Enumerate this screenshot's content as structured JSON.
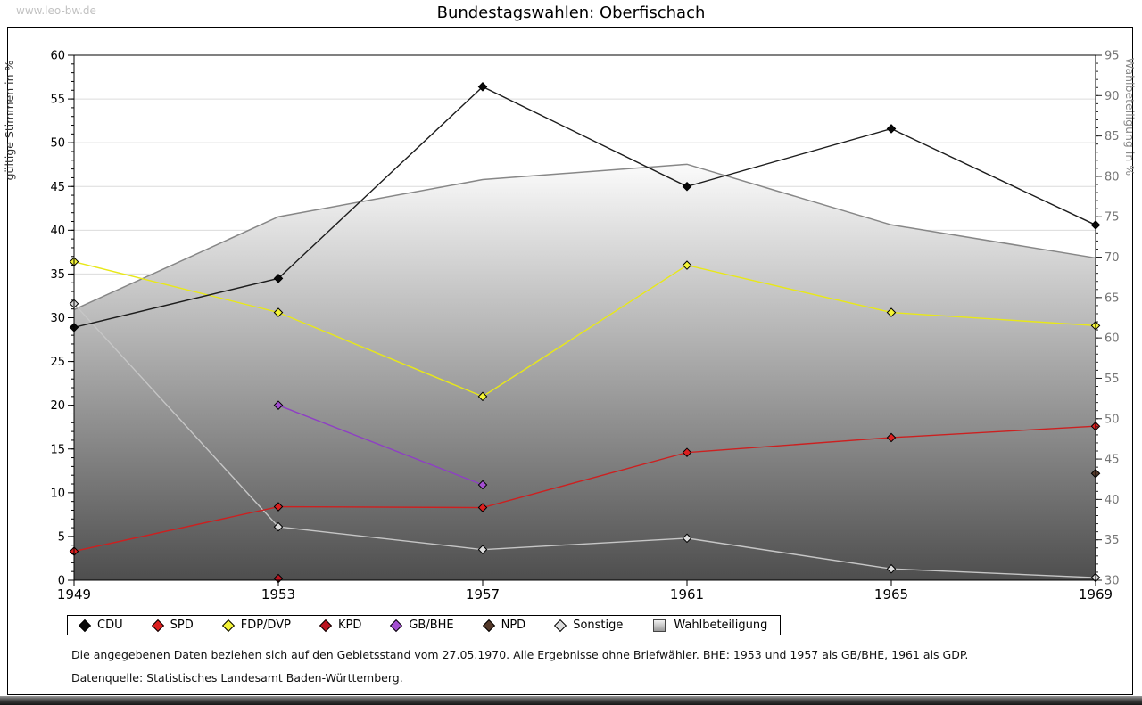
{
  "watermark": "www.leo-bw.de",
  "title": "Bundestagswahlen: Oberfischach",
  "footnotes": {
    "line1": "Die angegebenen Daten beziehen sich auf den Gebietsstand vom 27.05.1970. Alle Ergebnisse ohne Briefwähler. BHE: 1953 und 1957 als GB/BHE, 1961 als GDP.",
    "line2": "Datenquelle: Statistisches Landesamt Baden-Württemberg."
  },
  "chart_data": {
    "type": "line",
    "title": "Bundestagswahlen: Oberfischach",
    "x_years": [
      1949,
      1953,
      1957,
      1961,
      1965,
      1969
    ],
    "left_axis": {
      "label": "gültige Stimmen in %",
      "min": 0,
      "max": 60,
      "major_step": 5,
      "minor_step": 1
    },
    "right_axis": {
      "label": "Wahlbeteiligung in %",
      "min": 30,
      "max": 95,
      "major_step": 5,
      "minor_step": 1
    },
    "grid": true,
    "legend_position": "bottom",
    "series": [
      {
        "name": "CDU",
        "axis": "left",
        "line_color": "#1c1c1c",
        "marker_color": "#0a0a0a",
        "values": [
          28.9,
          34.5,
          56.4,
          45.0,
          51.6,
          40.6
        ]
      },
      {
        "name": "SPD",
        "axis": "left",
        "line_color": "#cc2020",
        "marker_color": "#dd1f1f",
        "values": [
          3.3,
          8.4,
          8.3,
          14.6,
          16.3,
          17.6
        ]
      },
      {
        "name": "FDP/DVP",
        "axis": "left",
        "line_color": "#e8e818",
        "marker_color": "#f4f436",
        "values": [
          36.4,
          30.6,
          21.0,
          36.0,
          30.6,
          29.1
        ]
      },
      {
        "name": "KPD",
        "axis": "left",
        "line_color": "#bb1420",
        "marker_color": "#bb1420",
        "values": [
          null,
          0.2,
          null,
          null,
          null,
          null
        ]
      },
      {
        "name": "GB/BHE",
        "axis": "left",
        "line_color": "#8e3fc4",
        "marker_color": "#a34fd0",
        "values": [
          null,
          20.0,
          10.9,
          null,
          null,
          null
        ]
      },
      {
        "name": "NPD",
        "axis": "left",
        "line_color": "#54392a",
        "marker_color": "#54392a",
        "values": [
          null,
          null,
          null,
          null,
          null,
          12.2
        ]
      },
      {
        "name": "Sonstige",
        "axis": "left",
        "line_color": "#c6c6c6",
        "marker_color": "#dcdcdc",
        "values": [
          31.6,
          6.1,
          3.5,
          4.8,
          1.3,
          0.3
        ]
      }
    ],
    "area_series": {
      "name": "Wahlbeteiligung",
      "axis": "right",
      "values": [
        63.5,
        75.0,
        79.6,
        81.5,
        74.0,
        69.9
      ],
      "line_color": "#878787",
      "fill_top": "#fbfbfb",
      "fill_bottom": "#4e4e4e"
    }
  },
  "legend": {
    "items": [
      {
        "label": "CDU",
        "swatch": "diamond",
        "color": "#0a0a0a"
      },
      {
        "label": "SPD",
        "swatch": "diamond",
        "color": "#dd1f1f"
      },
      {
        "label": "FDP/DVP",
        "swatch": "diamond",
        "color": "#f4f436"
      },
      {
        "label": "KPD",
        "swatch": "diamond",
        "color": "#bb1420"
      },
      {
        "label": "GB/BHE",
        "swatch": "diamond",
        "color": "#a34fd0"
      },
      {
        "label": "NPD",
        "swatch": "diamond",
        "color": "#54392a"
      },
      {
        "label": "Sonstige",
        "swatch": "diamond",
        "color": "#dcdcdc"
      },
      {
        "label": "Wahlbeteiligung",
        "swatch": "square",
        "color": "#cccccc"
      }
    ]
  }
}
